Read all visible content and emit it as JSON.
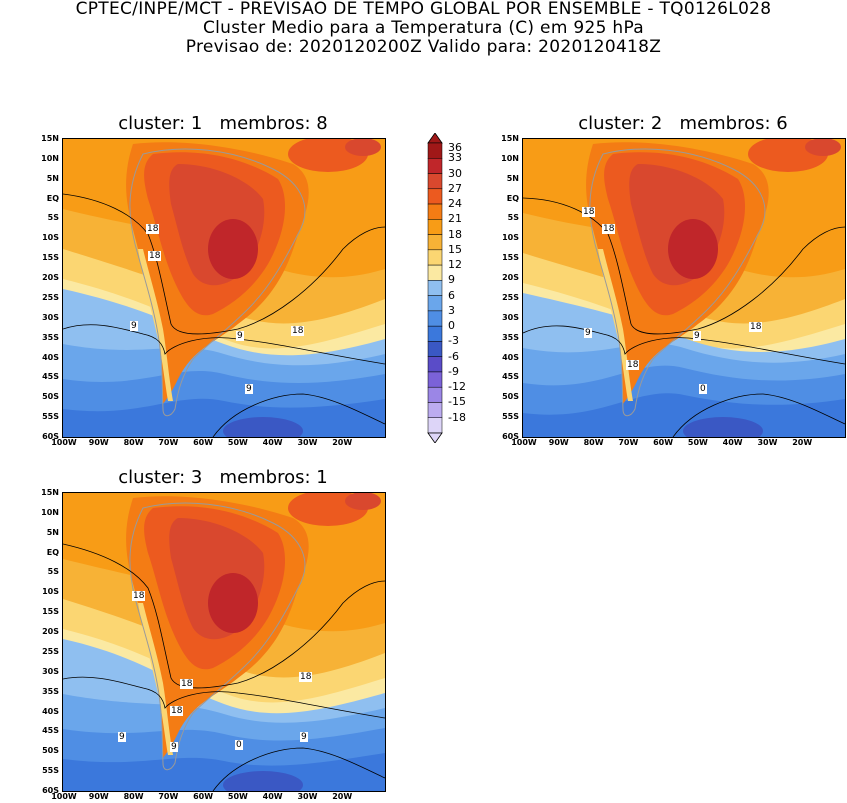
{
  "header": {
    "line1": "CPTEC/INPE/MCT - PREVISAO DE TEMPO GLOBAL POR ENSEMBLE - TQ0126L028",
    "line2": "Cluster Medio para a Temperatura (C) em 925 hPa",
    "line3": "Previsao de: 2020120200Z   Valido para: 2020120418Z"
  },
  "axes": {
    "lat_ticks": [
      "15N",
      "10N",
      "5N",
      "EQ",
      "5S",
      "10S",
      "15S",
      "20S",
      "25S",
      "30S",
      "35S",
      "40S",
      "45S",
      "50S",
      "55S",
      "60S"
    ],
    "lon_ticks": [
      "100W",
      "90W",
      "80W",
      "70W",
      "60W",
      "50W",
      "40W",
      "30W",
      "20W"
    ]
  },
  "panels": [
    {
      "title": "cluster: 1   membros: 8",
      "contour_labels": [
        "18",
        "18",
        "18",
        "9",
        "9",
        "9"
      ]
    },
    {
      "title": "cluster: 2   membros: 6",
      "contour_labels": [
        "18",
        "18",
        "18",
        "18",
        "9",
        "9",
        "0"
      ]
    },
    {
      "title": "cluster: 3   membros: 1",
      "contour_labels": [
        "18",
        "18",
        "18",
        "18",
        "9",
        "9",
        "9",
        "0"
      ]
    }
  ],
  "colorbar": {
    "labels": [
      "36",
      "33",
      "30",
      "27",
      "24",
      "21",
      "18",
      "15",
      "12",
      "9",
      "6",
      "3",
      "0",
      "-3",
      "-6",
      "-9",
      "-12",
      "-15",
      "-18"
    ],
    "colors": [
      "#a01818",
      "#c0262a",
      "#d9482e",
      "#ec5a1f",
      "#f47c14",
      "#f89c16",
      "#f7b236",
      "#fbd672",
      "#fbe9a2",
      "#8fbff0",
      "#6aa6eb",
      "#4f8ee4",
      "#3b78dc",
      "#3a58c4",
      "#5a4cc8",
      "#7b62d8",
      "#9b86e6",
      "#bcacf0",
      "#ddd5f8"
    ]
  },
  "legend_note": "Temperatura (C)"
}
